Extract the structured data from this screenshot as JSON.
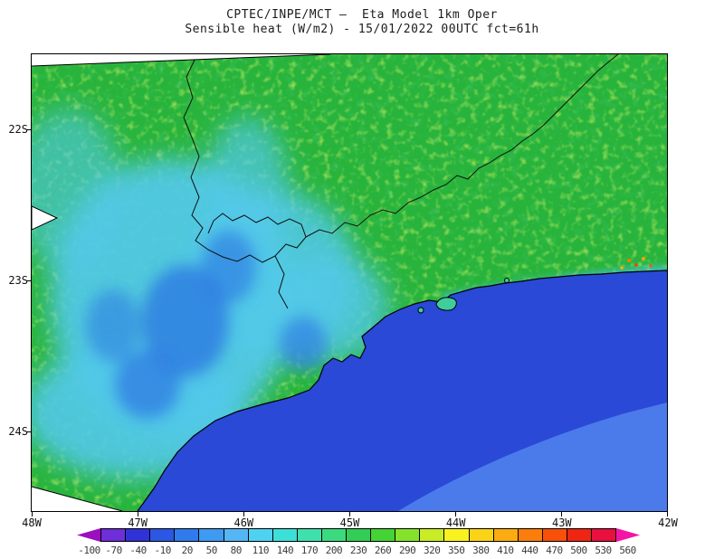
{
  "header": {
    "title_line1": "CPTEC/INPE/MCT —  Eta Model 1km Oper",
    "title_line2": "Sensible heat (W/m2) - 15/01/2022 00UTC fct=61h"
  },
  "map": {
    "y_axis_labels": [
      "22S",
      "23S",
      "24S"
    ],
    "x_axis_labels": [
      "48W",
      "47W",
      "46W",
      "45W",
      "44W",
      "43W",
      "42W"
    ],
    "region_colors": {
      "land_green": "#28b43c",
      "low_heat_cyan": "#52c9e9",
      "low_heat_blue": "#2f7fe2",
      "ocean_blue": "#2949d6",
      "ocean_light_blue": "#4b7beb"
    }
  },
  "colorbar": {
    "tick_labels": [
      "-100",
      "-70",
      "-40",
      "-10",
      "20",
      "50",
      "80",
      "110",
      "140",
      "170",
      "200",
      "230",
      "260",
      "290",
      "320",
      "350",
      "380",
      "410",
      "440",
      "470",
      "500",
      "530",
      "560"
    ],
    "colors": [
      "#9a0fc0",
      "#6e2ed8",
      "#3032d8",
      "#2b57e2",
      "#2f7bec",
      "#3f9af2",
      "#55b6f6",
      "#4fd2f2",
      "#3ce0d8",
      "#3fe0ac",
      "#3cda7e",
      "#33cc55",
      "#44d335",
      "#84e22c",
      "#c8ec26",
      "#f8f21e",
      "#fbd316",
      "#fcab10",
      "#fb7d0c",
      "#f8500a",
      "#ef2511",
      "#e90f3f",
      "#f414a6"
    ]
  }
}
